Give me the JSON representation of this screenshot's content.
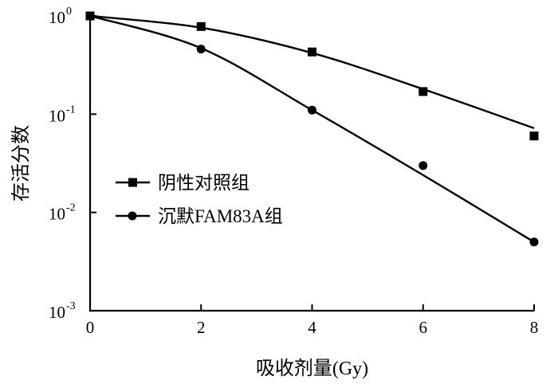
{
  "chart_data": {
    "type": "line",
    "xlabel": "吸收剂量(Gy)",
    "ylabel": "存活分数",
    "yscale": "log",
    "xlim": [
      0,
      8
    ],
    "ylim": [
      0.001,
      1
    ],
    "x_ticks": [
      "0",
      "2",
      "4",
      "6",
      "8"
    ],
    "y_ticks": [
      {
        "base": "10",
        "exp": "-3"
      },
      {
        "base": "10",
        "exp": "-2"
      },
      {
        "base": "10",
        "exp": "-1"
      },
      {
        "base": "10",
        "exp": "0"
      }
    ],
    "legend_position": "center-left",
    "series": [
      {
        "name": "阴性对照组",
        "marker": "square",
        "x": [
          0,
          2,
          4,
          6,
          8
        ],
        "y": [
          1.0,
          0.78,
          0.43,
          0.17,
          0.06
        ],
        "fit_y": [
          1.0,
          0.76,
          0.42,
          0.18,
          0.072
        ]
      },
      {
        "name": "沉默FAM83A组",
        "marker": "circle",
        "x": [
          0,
          2,
          4,
          6,
          8
        ],
        "y": [
          1.0,
          0.46,
          0.11,
          0.03,
          0.005
        ],
        "fit_y": [
          1.0,
          0.47,
          0.11,
          0.024,
          0.005
        ]
      }
    ]
  }
}
